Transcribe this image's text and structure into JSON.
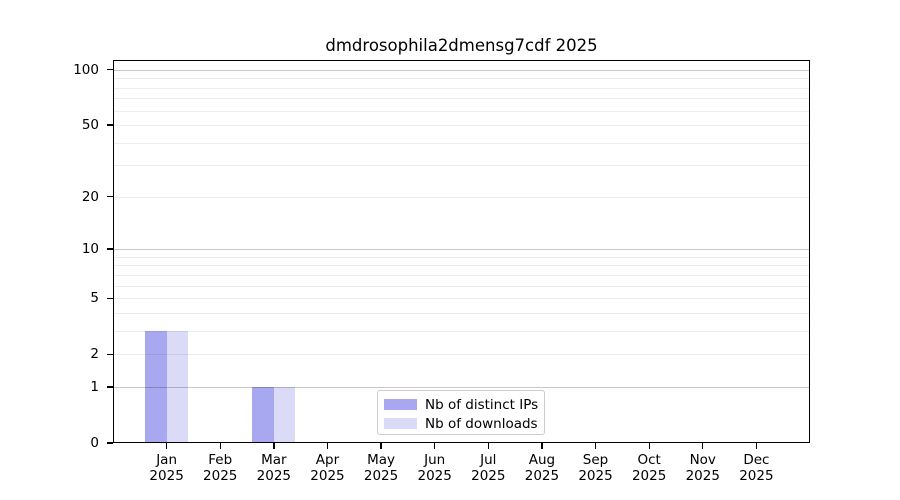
{
  "chart_data": {
    "type": "bar",
    "title": "dmdrosophila2dmensg7cdf 2025",
    "categories": [
      {
        "month": "Jan",
        "year": "2025"
      },
      {
        "month": "Feb",
        "year": "2025"
      },
      {
        "month": "Mar",
        "year": "2025"
      },
      {
        "month": "Apr",
        "year": "2025"
      },
      {
        "month": "May",
        "year": "2025"
      },
      {
        "month": "Jun",
        "year": "2025"
      },
      {
        "month": "Jul",
        "year": "2025"
      },
      {
        "month": "Aug",
        "year": "2025"
      },
      {
        "month": "Sep",
        "year": "2025"
      },
      {
        "month": "Oct",
        "year": "2025"
      },
      {
        "month": "Nov",
        "year": "2025"
      },
      {
        "month": "Dec",
        "year": "2025"
      }
    ],
    "series": [
      {
        "name": "Nb of distinct IPs",
        "color": "#a8a8f0",
        "values": [
          3,
          0,
          1,
          0,
          0,
          0,
          0,
          0,
          0,
          0,
          0,
          0
        ]
      },
      {
        "name": "Nb of downloads",
        "color": "#dbdbf8",
        "values": [
          3,
          0,
          1,
          0,
          0,
          0,
          0,
          0,
          0,
          0,
          0,
          0
        ]
      }
    ],
    "xlabel": "",
    "ylabel": "",
    "yscale": "log10(1+y)",
    "ylim": [
      0,
      113
    ],
    "yticks": [
      0,
      1,
      2,
      5,
      10,
      20,
      50,
      100
    ],
    "major_gridlines": [
      1,
      10,
      100
    ],
    "minor_gridlines": [
      2,
      3,
      4,
      5,
      6,
      7,
      8,
      9,
      20,
      30,
      40,
      50,
      60,
      70,
      80,
      90
    ],
    "grid": "horizontal",
    "legend_position": "lower-center-inside"
  },
  "colors": {
    "background": "#ffffff",
    "axis": "#000000",
    "grid_major": "#c9c9c9",
    "grid_minor": "#ececec",
    "legend_border": "#cccccc"
  }
}
